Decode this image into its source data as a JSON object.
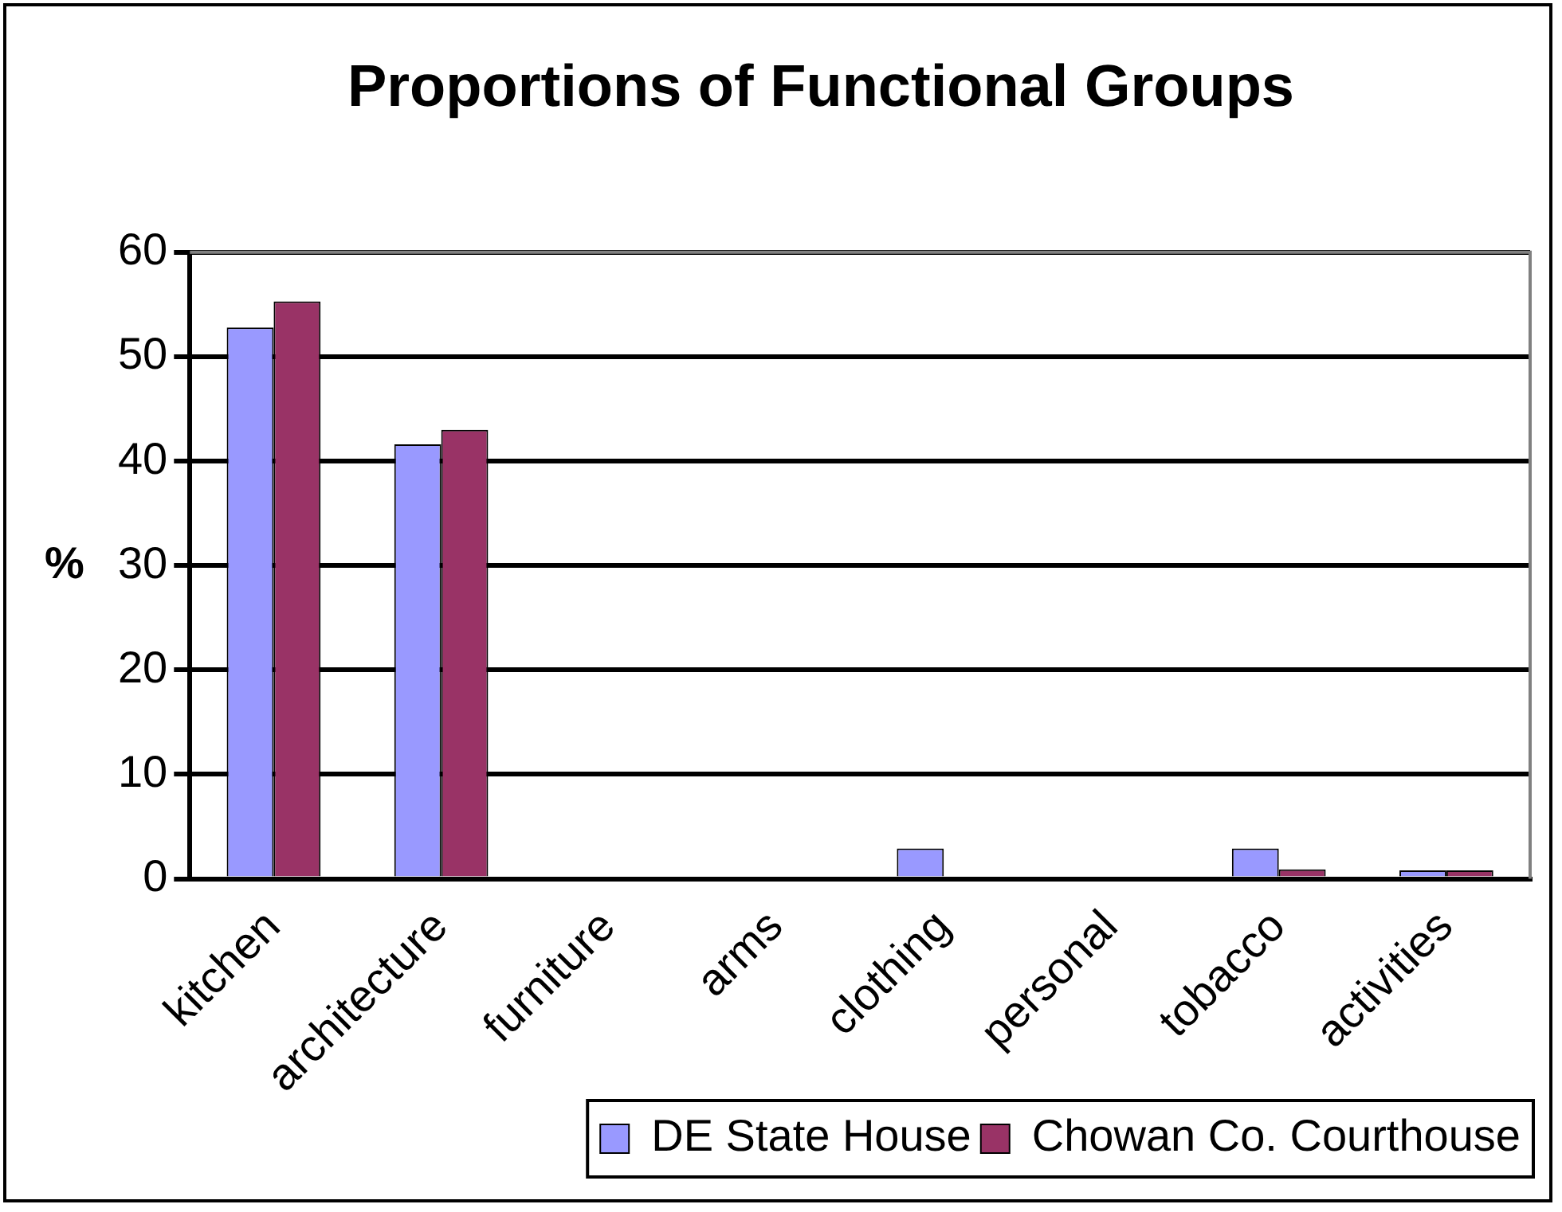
{
  "chart_data": {
    "type": "bar",
    "title": "Proportions of Functional Groups",
    "ylabel": "%",
    "categories": [
      "kitchen",
      "architecture",
      "furniture",
      "arms",
      "clothing",
      "personal",
      "tobacco",
      "activities"
    ],
    "series": [
      {
        "name": "DE State House",
        "color": "#9999ff",
        "values": [
          52.8,
          41.6,
          0,
          0,
          2.9,
          0,
          2.9,
          0.8
        ]
      },
      {
        "name": "Chowan Co. Courthouse",
        "color": "#993366",
        "values": [
          55.3,
          43.0,
          0,
          0,
          0,
          0,
          0.9,
          0.8
        ]
      }
    ],
    "ylim": [
      0,
      60
    ],
    "yticks": [
      0,
      10,
      20,
      30,
      40,
      50,
      60
    ],
    "grid": "y",
    "legend": "bottom right"
  }
}
